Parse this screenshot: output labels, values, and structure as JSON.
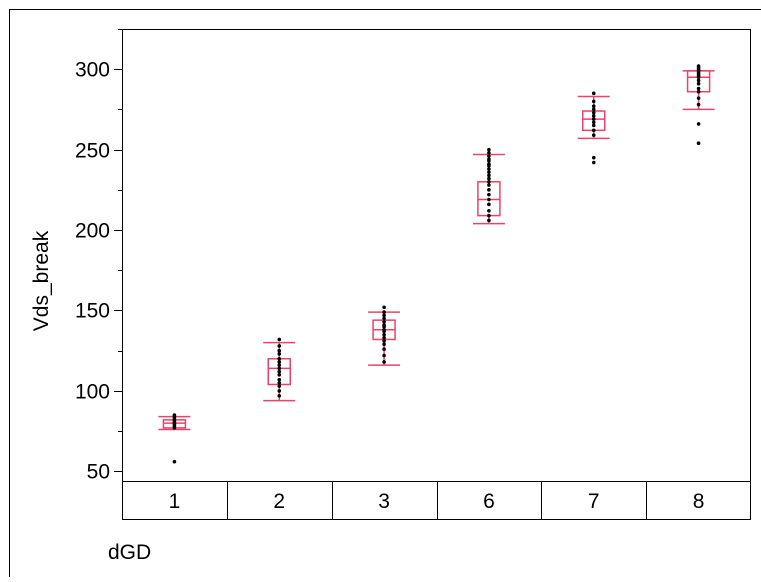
{
  "chart_data": {
    "type": "box",
    "xlabel": "dGD",
    "ylabel": "Vds_break",
    "categories": [
      "1",
      "2",
      "3",
      "6",
      "7",
      "8"
    ],
    "ylim": [
      44,
      325
    ],
    "yticks_major": [
      50,
      100,
      150,
      200,
      250,
      300
    ],
    "yticks_minor": [
      75,
      125,
      175,
      225,
      275,
      325
    ],
    "grid": false,
    "legend": "none",
    "box_color": "#e8436a",
    "point_color": "#000000",
    "boxes": [
      {
        "category": "1",
        "whisker_low": 76,
        "q1": 77,
        "median": 80,
        "q3": 82,
        "whisker_high": 84,
        "points": [
          56,
          77,
          78,
          79,
          80,
          80,
          81,
          82,
          83,
          84,
          85
        ]
      },
      {
        "category": "2",
        "whisker_low": 94,
        "q1": 104,
        "median": 114,
        "q3": 120,
        "whisker_high": 130,
        "points": [
          97,
          100,
          103,
          105,
          107,
          110,
          112,
          114,
          116,
          118,
          120,
          123,
          125,
          128,
          132
        ]
      },
      {
        "category": "3",
        "whisker_low": 116,
        "q1": 132,
        "median": 138,
        "q3": 144,
        "whisker_high": 149,
        "points": [
          118,
          122,
          126,
          129,
          131,
          133,
          135,
          137,
          138,
          140,
          141,
          143,
          145,
          147,
          149,
          152
        ]
      },
      {
        "category": "6",
        "whisker_low": 204,
        "q1": 209,
        "median": 219,
        "q3": 230,
        "whisker_high": 247,
        "points": [
          206,
          209,
          212,
          216,
          219,
          222,
          225,
          228,
          230,
          232,
          234,
          236,
          238,
          240,
          241,
          243,
          244,
          246,
          248,
          250
        ]
      },
      {
        "category": "7",
        "whisker_low": 257,
        "q1": 262,
        "median": 269,
        "q3": 274,
        "whisker_high": 283,
        "points": [
          242,
          245,
          259,
          262,
          265,
          267,
          269,
          271,
          273,
          275,
          277,
          280,
          285
        ]
      },
      {
        "category": "8",
        "whisker_low": 275,
        "q1": 286,
        "median": 295,
        "q3": 299,
        "whisker_high": 299,
        "points": [
          254,
          266,
          278,
          282,
          286,
          288,
          291,
          293,
          295,
          296,
          297,
          298,
          299,
          300,
          301,
          302
        ]
      }
    ]
  }
}
